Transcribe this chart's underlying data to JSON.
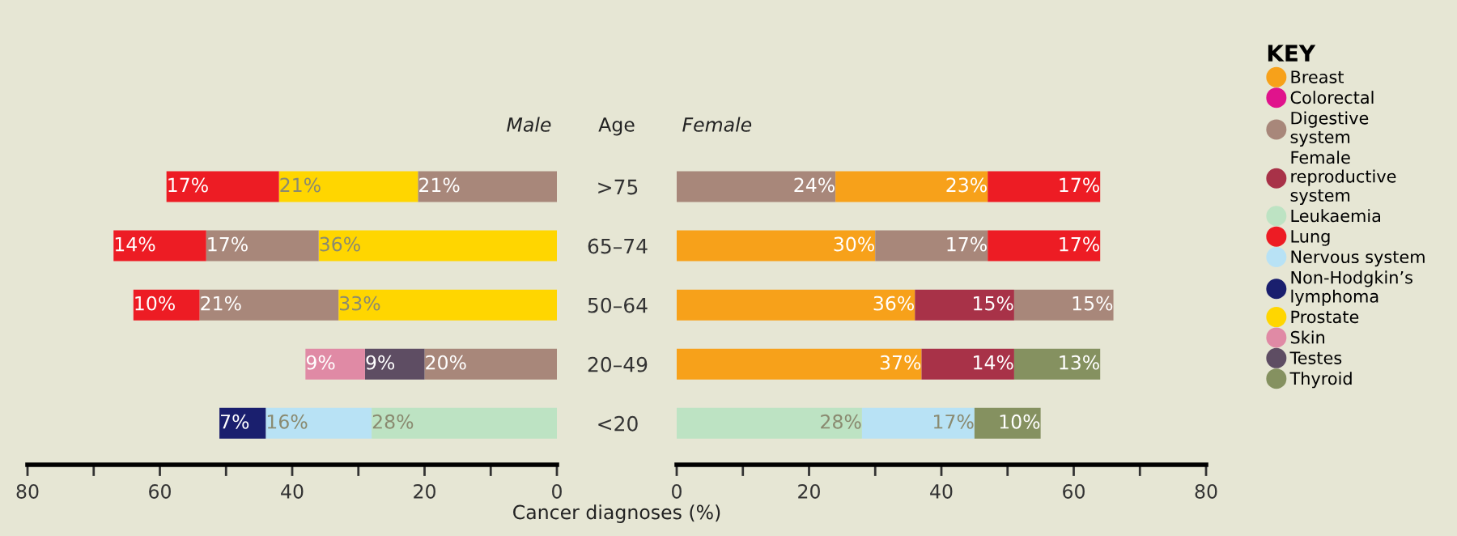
{
  "chart_data": [
    {
      "type": "bar",
      "orientation": "horizontal",
      "stacked": true,
      "title": "Male",
      "ylabel": "Age",
      "xlabel": "Cancer diagnoses (%)",
      "categories": [
        ">75",
        "65–74",
        "50–64",
        "20–49",
        "<20"
      ],
      "series": [
        {
          "colors": [
            "#a8877a",
            "#ffd600",
            "#ffd600",
            "#a8877a",
            "#bde3c3"
          ],
          "values": [
            21,
            36,
            33,
            20,
            28
          ],
          "value_labels": [
            "21%",
            "36%",
            "33%",
            "20%",
            "28%"
          ]
        },
        {
          "colors": [
            "#ffd600",
            "#a8877a",
            "#a8877a",
            "#5e4d63",
            "#b8e2f5"
          ],
          "values": [
            21,
            17,
            21,
            9,
            16
          ],
          "value_labels": [
            "21%",
            "17%",
            "21%",
            "9%",
            "16%"
          ]
        },
        {
          "colors": [
            "#ed1c24",
            "#ed1c24",
            "#ed1c24",
            "#e08aa5",
            "#1a1f6e"
          ],
          "values": [
            17,
            14,
            10,
            9,
            7
          ],
          "value_labels": [
            "17%",
            "14%",
            "10%",
            "9%",
            "7%"
          ]
        }
      ],
      "xlim": [
        80,
        0
      ],
      "xticks": [
        80,
        {
          "value": 70,
          "label": null
        },
        60,
        {
          "value": 50,
          "label": null
        },
        40,
        {
          "value": 30,
          "label": null
        },
        20,
        {
          "value": 10,
          "label": null
        },
        0
      ],
      "grid": false
    },
    {
      "type": "bar",
      "orientation": "horizontal",
      "stacked": true,
      "title": "Female",
      "series": [
        {
          "colors": [
            "#a8877a",
            "#f7a11a",
            "#f7a11a",
            "#f7a11a",
            "#bde3c3"
          ],
          "values": [
            24,
            30,
            36,
            37,
            28
          ],
          "value_labels": [
            "24%",
            "30%",
            "36%",
            "37%",
            "28%"
          ]
        },
        {
          "colors": [
            "#f7a11a",
            "#a8877a",
            "#a83248",
            "#a83248",
            "#b8e2f5"
          ],
          "values": [
            23,
            17,
            15,
            14,
            17
          ],
          "value_labels": [
            "23%",
            "17%",
            "15%",
            "14%",
            "17%"
          ]
        },
        {
          "colors": [
            "#ed1c24",
            "#ed1c24",
            "#a8877a",
            "#859160",
            "#859160"
          ],
          "values": [
            17,
            17,
            15,
            13,
            10
          ],
          "value_labels": [
            "17%",
            "17%",
            "15%",
            "13%",
            "10%"
          ]
        }
      ],
      "xlim": [
        0,
        80
      ],
      "xticks": [
        0,
        {
          "value": 10,
          "label": null
        },
        20,
        {
          "value": 30,
          "label": null
        },
        40,
        {
          "value": 50,
          "label": null
        },
        60,
        {
          "value": 70,
          "label": null
        },
        80
      ],
      "grid": false
    },
    {
      "type": "other",
      "title": "KEY",
      "categories": [
        "Breast",
        "Colorectal",
        "Digestive system",
        "Female reproductive system",
        "Leukaemia",
        "Lung",
        "Nervous system",
        "Non-Hodgkin’s lymphoma",
        "Prostate",
        "Skin",
        "Testes",
        "Thyroid"
      ],
      "colors": [
        "#f7a11a",
        "#e0138c",
        "#a8877a",
        "#a83248",
        "#bde3c3",
        "#ed1c24",
        "#b8e2f5",
        "#1a1f6e",
        "#ffd600",
        "#e08aa5",
        "#5e4d63",
        "#859160"
      ]
    }
  ]
}
